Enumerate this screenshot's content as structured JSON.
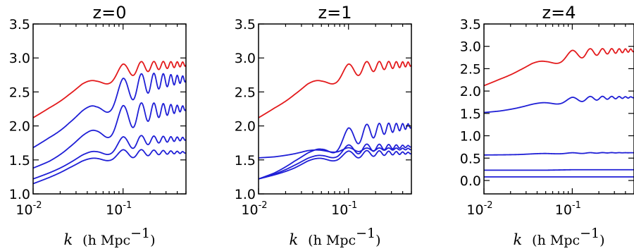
{
  "chart_data": [
    {
      "type": "line",
      "title": "z=0",
      "xlabel": "k  (h Mpc⁻¹)",
      "xscale": "log",
      "xlim": [
        0.01,
        0.5
      ],
      "ylim": [
        1.0,
        3.5
      ],
      "xticks": [
        {
          "value": 0.01,
          "base": "10",
          "exp": "-2"
        },
        {
          "value": 0.1,
          "base": "10",
          "exp": "-1"
        }
      ],
      "yticks": [
        {
          "value": 1.0,
          "label": "1.0"
        },
        {
          "value": 1.5,
          "label": "1.5"
        },
        {
          "value": 2.0,
          "label": "2.0"
        },
        {
          "value": 2.5,
          "label": "2.5"
        },
        {
          "value": 3.0,
          "label": "3.0"
        },
        {
          "value": 3.5,
          "label": "3.5"
        }
      ],
      "series": [
        {
          "color": "#e31a1c",
          "base": [
            [
              0.01,
              2.12
            ],
            [
              0.015,
              2.28
            ],
            [
              0.025,
              2.46
            ],
            [
              0.035,
              2.56
            ],
            [
              0.05,
              2.62
            ],
            [
              0.07,
              2.72
            ],
            [
              0.1,
              2.8
            ],
            [
              0.15,
              2.86
            ],
            [
              0.25,
              2.89
            ],
            [
              0.5,
              2.91
            ]
          ],
          "amp": [
            [
              0.01,
              0.0
            ],
            [
              0.04,
              0.07
            ],
            [
              0.1,
              0.11
            ],
            [
              0.2,
              0.07
            ],
            [
              0.5,
              0.03
            ]
          ]
        },
        {
          "color": "#1f1fd6",
          "base": [
            [
              0.01,
              1.68
            ],
            [
              0.015,
              1.85
            ],
            [
              0.025,
              2.04
            ],
            [
              0.035,
              2.14
            ],
            [
              0.05,
              2.22
            ],
            [
              0.07,
              2.37
            ],
            [
              0.1,
              2.5
            ],
            [
              0.15,
              2.6
            ],
            [
              0.25,
              2.66
            ],
            [
              0.5,
              2.69
            ]
          ],
          "amp": [
            [
              0.01,
              0.0
            ],
            [
              0.04,
              0.1
            ],
            [
              0.1,
              0.2
            ],
            [
              0.2,
              0.14
            ],
            [
              0.5,
              0.04
            ]
          ]
        },
        {
          "color": "#1f1fd6",
          "base": [
            [
              0.01,
              1.38
            ],
            [
              0.015,
              1.5
            ],
            [
              0.025,
              1.68
            ],
            [
              0.035,
              1.78
            ],
            [
              0.05,
              1.87
            ],
            [
              0.07,
              1.99
            ],
            [
              0.1,
              2.1
            ],
            [
              0.15,
              2.18
            ],
            [
              0.25,
              2.23
            ],
            [
              0.5,
              2.26
            ]
          ],
          "amp": [
            [
              0.01,
              0.0
            ],
            [
              0.04,
              0.09
            ],
            [
              0.1,
              0.2
            ],
            [
              0.2,
              0.13
            ],
            [
              0.5,
              0.03
            ]
          ]
        },
        {
          "color": "#1f1fd6",
          "base": [
            [
              0.01,
              1.22
            ],
            [
              0.015,
              1.32
            ],
            [
              0.025,
              1.45
            ],
            [
              0.035,
              1.53
            ],
            [
              0.05,
              1.59
            ],
            [
              0.07,
              1.67
            ],
            [
              0.1,
              1.73
            ],
            [
              0.15,
              1.78
            ],
            [
              0.25,
              1.8
            ],
            [
              0.5,
              1.81
            ]
          ],
          "amp": [
            [
              0.01,
              0.0
            ],
            [
              0.04,
              0.05
            ],
            [
              0.1,
              0.11
            ],
            [
              0.2,
              0.06
            ],
            [
              0.5,
              0.02
            ]
          ]
        },
        {
          "color": "#1f1fd6",
          "base": [
            [
              0.01,
              1.15
            ],
            [
              0.015,
              1.25
            ],
            [
              0.025,
              1.38
            ],
            [
              0.035,
              1.45
            ],
            [
              0.05,
              1.5
            ],
            [
              0.07,
              1.55
            ],
            [
              0.1,
              1.58
            ],
            [
              0.15,
              1.6
            ],
            [
              0.25,
              1.61
            ],
            [
              0.5,
              1.61
            ]
          ],
          "amp": [
            [
              0.01,
              0.0
            ],
            [
              0.04,
              0.04
            ],
            [
              0.1,
              0.07
            ],
            [
              0.2,
              0.04
            ],
            [
              0.5,
              0.01
            ]
          ]
        }
      ]
    },
    {
      "type": "line",
      "title": "z=1",
      "xlabel": "k  (h Mpc⁻¹)",
      "xscale": "log",
      "xlim": [
        0.01,
        0.5
      ],
      "ylim": [
        1.0,
        3.5
      ],
      "xticks": [
        {
          "value": 0.01,
          "base": "10",
          "exp": "-2"
        },
        {
          "value": 0.1,
          "base": "10",
          "exp": "-1"
        }
      ],
      "yticks": [
        {
          "value": 1.0,
          "label": "1.0"
        },
        {
          "value": 1.5,
          "label": "1.5"
        },
        {
          "value": 2.0,
          "label": "2.0"
        },
        {
          "value": 2.5,
          "label": "2.5"
        },
        {
          "value": 3.0,
          "label": "3.0"
        },
        {
          "value": 3.5,
          "label": "3.5"
        }
      ],
      "series": [
        {
          "color": "#e31a1c",
          "base": [
            [
              0.01,
              2.12
            ],
            [
              0.015,
              2.28
            ],
            [
              0.025,
              2.46
            ],
            [
              0.035,
              2.56
            ],
            [
              0.05,
              2.62
            ],
            [
              0.07,
              2.72
            ],
            [
              0.1,
              2.8
            ],
            [
              0.15,
              2.86
            ],
            [
              0.25,
              2.89
            ],
            [
              0.5,
              2.91
            ]
          ],
          "amp": [
            [
              0.01,
              0.0
            ],
            [
              0.04,
              0.07
            ],
            [
              0.1,
              0.11
            ],
            [
              0.2,
              0.07
            ],
            [
              0.5,
              0.03
            ]
          ]
        },
        {
          "color": "#1f1fd6",
          "base": [
            [
              0.01,
              1.22
            ],
            [
              0.015,
              1.32
            ],
            [
              0.025,
              1.48
            ],
            [
              0.035,
              1.56
            ],
            [
              0.05,
              1.62
            ],
            [
              0.07,
              1.72
            ],
            [
              0.1,
              1.82
            ],
            [
              0.15,
              1.9
            ],
            [
              0.25,
              1.96
            ],
            [
              0.5,
              2.0
            ]
          ],
          "amp": [
            [
              0.01,
              0.0
            ],
            [
              0.04,
              0.05
            ],
            [
              0.1,
              0.15
            ],
            [
              0.2,
              0.1
            ],
            [
              0.5,
              0.03
            ]
          ]
        },
        {
          "color": "#1f1fd6",
          "base": [
            [
              0.01,
              1.22
            ],
            [
              0.015,
              1.3
            ],
            [
              0.025,
              1.42
            ],
            [
              0.035,
              1.49
            ],
            [
              0.05,
              1.54
            ],
            [
              0.07,
              1.6
            ],
            [
              0.1,
              1.64
            ],
            [
              0.15,
              1.67
            ],
            [
              0.25,
              1.69
            ],
            [
              0.5,
              1.7
            ]
          ],
          "amp": [
            [
              0.01,
              0.0
            ],
            [
              0.04,
              0.04
            ],
            [
              0.1,
              0.08
            ],
            [
              0.2,
              0.05
            ],
            [
              0.5,
              0.01
            ]
          ]
        },
        {
          "color": "#1f1fd6",
          "base": [
            [
              0.01,
              1.53
            ],
            [
              0.015,
              1.55
            ],
            [
              0.025,
              1.59
            ],
            [
              0.035,
              1.62
            ],
            [
              0.05,
              1.63
            ],
            [
              0.07,
              1.64
            ],
            [
              0.1,
              1.65
            ],
            [
              0.15,
              1.65
            ],
            [
              0.25,
              1.66
            ],
            [
              0.5,
              1.66
            ]
          ],
          "amp": [
            [
              0.01,
              0.0
            ],
            [
              0.04,
              0.02
            ],
            [
              0.1,
              0.03
            ],
            [
              0.2,
              0.02
            ],
            [
              0.5,
              0.01
            ]
          ]
        },
        {
          "color": "#1f1fd6",
          "base": [
            [
              0.01,
              1.22
            ],
            [
              0.015,
              1.29
            ],
            [
              0.025,
              1.38
            ],
            [
              0.035,
              1.45
            ],
            [
              0.05,
              1.5
            ],
            [
              0.07,
              1.54
            ],
            [
              0.1,
              1.57
            ],
            [
              0.15,
              1.59
            ],
            [
              0.25,
              1.6
            ],
            [
              0.5,
              1.6
            ]
          ],
          "amp": [
            [
              0.01,
              0.0
            ],
            [
              0.04,
              0.04
            ],
            [
              0.1,
              0.06
            ],
            [
              0.2,
              0.04
            ],
            [
              0.5,
              0.01
            ]
          ]
        }
      ]
    },
    {
      "type": "line",
      "title": "z=4",
      "xlabel": "k  (h Mpc⁻¹)",
      "xscale": "log",
      "xlim": [
        0.01,
        0.5
      ],
      "ylim": [
        -0.3,
        3.5
      ],
      "xticks": [
        {
          "value": 0.01,
          "base": "10",
          "exp": "-2"
        },
        {
          "value": 0.1,
          "base": "10",
          "exp": "-1"
        }
      ],
      "yticks": [
        {
          "value": 0.0,
          "label": "0.0"
        },
        {
          "value": 0.5,
          "label": "0.5"
        },
        {
          "value": 1.0,
          "label": "1.0"
        },
        {
          "value": 1.5,
          "label": "1.5"
        },
        {
          "value": 2.0,
          "label": "2.0"
        },
        {
          "value": 2.5,
          "label": "2.5"
        },
        {
          "value": 3.0,
          "label": "3.0"
        },
        {
          "value": 3.5,
          "label": "3.5"
        }
      ],
      "series": [
        {
          "color": "#e31a1c",
          "base": [
            [
              0.01,
              2.12
            ],
            [
              0.015,
              2.28
            ],
            [
              0.025,
              2.46
            ],
            [
              0.035,
              2.56
            ],
            [
              0.05,
              2.62
            ],
            [
              0.07,
              2.72
            ],
            [
              0.1,
              2.8
            ],
            [
              0.15,
              2.86
            ],
            [
              0.25,
              2.89
            ],
            [
              0.5,
              2.91
            ]
          ],
          "amp": [
            [
              0.01,
              0.0
            ],
            [
              0.04,
              0.07
            ],
            [
              0.1,
              0.11
            ],
            [
              0.2,
              0.07
            ],
            [
              0.5,
              0.03
            ]
          ]
        },
        {
          "color": "#1f1fd6",
          "base": [
            [
              0.01,
              1.52
            ],
            [
              0.015,
              1.56
            ],
            [
              0.025,
              1.63
            ],
            [
              0.035,
              1.68
            ],
            [
              0.05,
              1.72
            ],
            [
              0.07,
              1.76
            ],
            [
              0.1,
              1.8
            ],
            [
              0.15,
              1.83
            ],
            [
              0.25,
              1.85
            ],
            [
              0.5,
              1.86
            ]
          ],
          "amp": [
            [
              0.01,
              0.0
            ],
            [
              0.04,
              0.03
            ],
            [
              0.1,
              0.06
            ],
            [
              0.2,
              0.04
            ],
            [
              0.5,
              0.01
            ]
          ]
        },
        {
          "color": "#1f1fd6",
          "base": [
            [
              0.01,
              0.57
            ],
            [
              0.025,
              0.58
            ],
            [
              0.05,
              0.6
            ],
            [
              0.1,
              0.61
            ],
            [
              0.25,
              0.62
            ],
            [
              0.5,
              0.62
            ]
          ],
          "amp": [
            [
              0.01,
              0.0
            ],
            [
              0.1,
              0.01
            ],
            [
              0.5,
              0.0
            ]
          ]
        },
        {
          "color": "#1f1fd6",
          "base": [
            [
              0.01,
              0.23
            ],
            [
              0.05,
              0.23
            ],
            [
              0.1,
              0.24
            ],
            [
              0.5,
              0.24
            ]
          ],
          "amp": [
            [
              0.01,
              0.0
            ],
            [
              0.5,
              0.0
            ]
          ]
        },
        {
          "color": "#1f1fd6",
          "base": [
            [
              0.01,
              0.08
            ],
            [
              0.5,
              0.08
            ]
          ],
          "amp": [
            [
              0.01,
              0.0
            ],
            [
              0.5,
              0.0
            ]
          ]
        }
      ]
    }
  ]
}
